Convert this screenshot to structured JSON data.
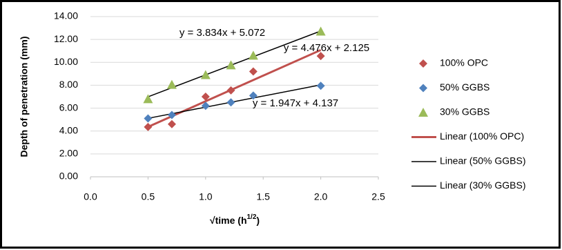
{
  "chart_data": {
    "type": "scatter",
    "xlabel": "√time (h",
    "xlabel_sup": "1/2",
    "xlabel_end": ")",
    "ylabel": "Depth of penetration (mm)",
    "xlim": [
      0,
      2.5
    ],
    "ylim": [
      0,
      14
    ],
    "xticks": [
      {
        "value": 0,
        "label": "0.0"
      },
      0.5,
      {
        "value": 1,
        "label": "1.0"
      },
      1.5,
      {
        "value": 2,
        "label": "2.0"
      },
      2.5
    ],
    "yticks": [
      {
        "value": 0,
        "label": "0.00"
      },
      {
        "value": 2,
        "label": "2.00"
      },
      {
        "value": 4,
        "label": "4.00"
      },
      {
        "value": 6,
        "label": "6.00"
      },
      {
        "value": 8,
        "label": "8.00"
      },
      {
        "value": 10,
        "label": "10.00"
      },
      {
        "value": 12,
        "label": "12.00"
      },
      {
        "value": 14,
        "label": "14.00"
      }
    ],
    "grid": true,
    "series": [
      {
        "name": "100% OPC",
        "color": "#c0504d",
        "marker": "diamond",
        "x": [
          0.5,
          0.707,
          1,
          1.22,
          1.414,
          2
        ],
        "values": [
          4.35,
          4.6,
          7.0,
          7.55,
          9.2,
          10.55
        ]
      },
      {
        "name": "50% GGBS",
        "color": "#4f81bd",
        "marker": "diamond",
        "x": [
          0.5,
          0.707,
          1,
          1.22,
          1.414,
          2
        ],
        "values": [
          5.1,
          5.4,
          6.2,
          6.5,
          7.1,
          7.95
        ]
      },
      {
        "name": "30% GGBS",
        "color": "#9bbb59",
        "marker": "triangle",
        "x": [
          0.5,
          0.707,
          1,
          1.22,
          1.414,
          2
        ],
        "values": [
          6.8,
          8.05,
          8.9,
          9.75,
          10.6,
          12.7
        ]
      }
    ],
    "trendlines": [
      {
        "name": "Linear (100% OPC)",
        "color": "#c0504d",
        "slope": 4.476,
        "intercept": 2.125,
        "equation": "y = 4.476x + 2.125"
      },
      {
        "name": "Linear (50% GGBS)",
        "color": "#000000",
        "slope": 1.947,
        "intercept": 4.137,
        "equation": "y = 1.947x + 4.137"
      },
      {
        "name": "Linear (30% GGBS)",
        "color": "#000000",
        "slope": 3.834,
        "intercept": 5.072,
        "equation": "y = 3.834x + 5.072"
      }
    ]
  }
}
